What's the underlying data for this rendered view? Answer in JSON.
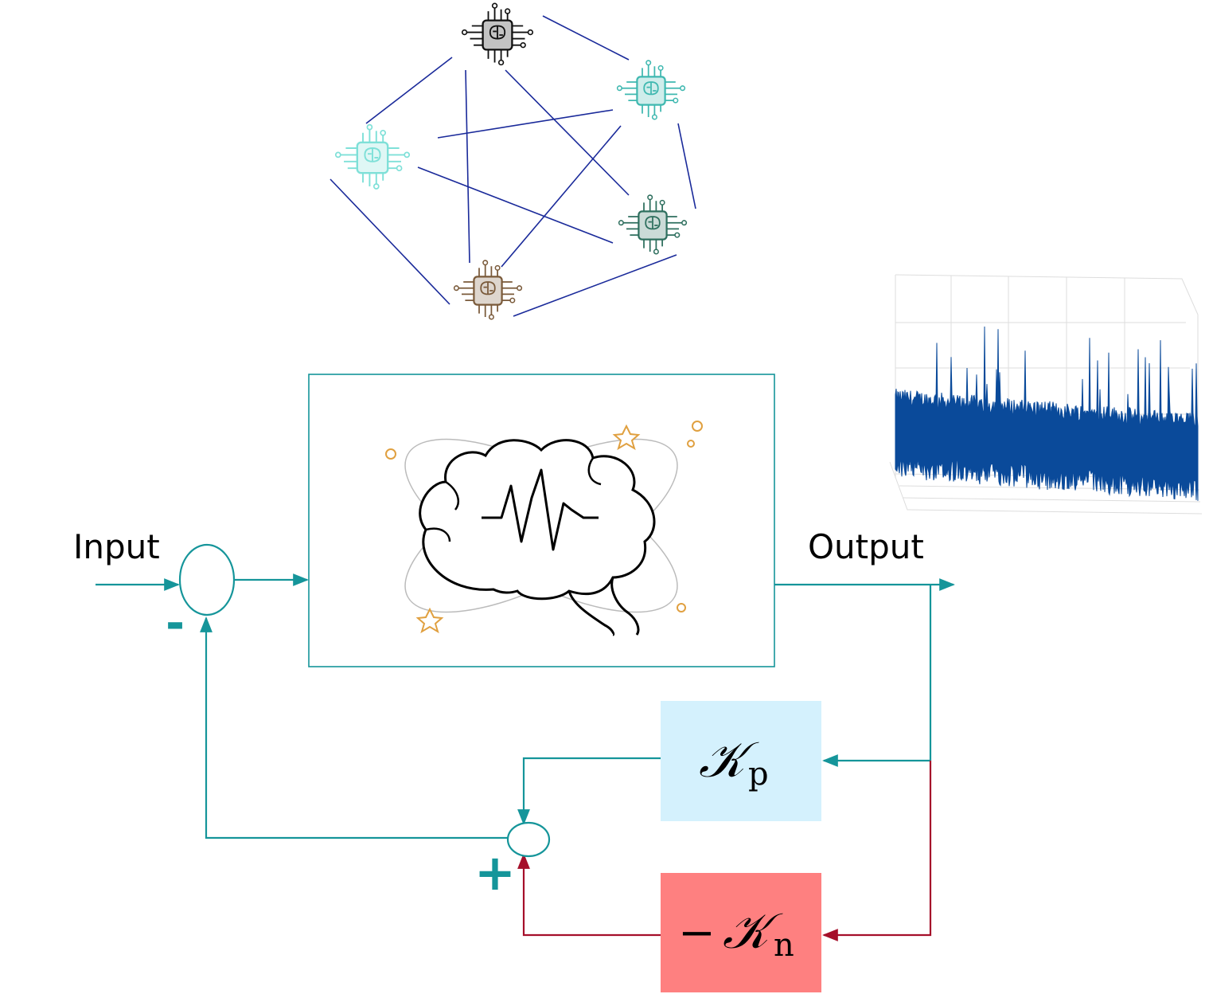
{
  "labels": {
    "input": "Input",
    "output": "Output"
  },
  "signs": {
    "minus": "-",
    "plus": "+"
  },
  "gain_positive": {
    "symbol": "𝒦",
    "subscript": "p",
    "color": "#d4f1fd"
  },
  "gain_negative": {
    "prefix": "−",
    "symbol": "𝒦",
    "subscript": "n",
    "color": "#fe8080"
  },
  "colors": {
    "signal_line": "#15959a",
    "negative_line": "#a50f2a",
    "network_edge": "#1a2a9a",
    "plot_fill": "#0a4a9a"
  },
  "network": {
    "nodes": [
      {
        "icon": "brain-chip-icon",
        "color": "#111111"
      },
      {
        "icon": "brain-chip-icon",
        "color": "#7fe0d8"
      },
      {
        "icon": "brain-chip-icon",
        "color": "#4bbcb4"
      },
      {
        "icon": "brain-chip-icon",
        "color": "#2e7f6e"
      },
      {
        "icon": "brain-chip-icon",
        "color": "#7a5a3a"
      }
    ]
  }
}
